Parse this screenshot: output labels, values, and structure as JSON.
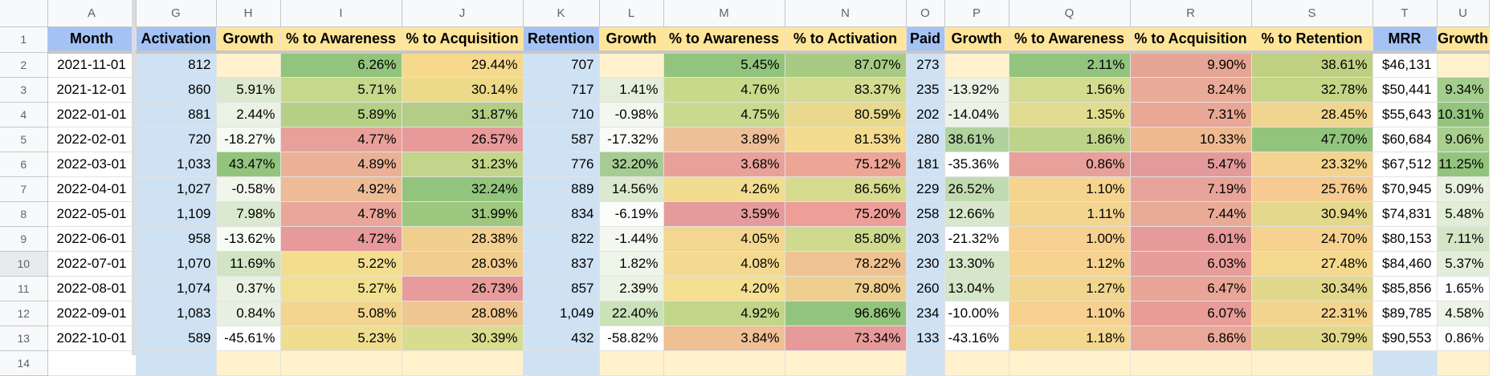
{
  "columns": [
    "A",
    "G",
    "H",
    "I",
    "J",
    "K",
    "L",
    "M",
    "N",
    "O",
    "P",
    "Q",
    "R",
    "S",
    "T",
    "U"
  ],
  "row_numbers": [
    "1",
    "2",
    "3",
    "4",
    "5",
    "6",
    "7",
    "8",
    "9",
    "10",
    "11",
    "12",
    "13",
    "14"
  ],
  "headers": [
    "Month",
    "Activation",
    "Growth",
    "% to Awareness",
    "% to Acquisition",
    "Retention",
    "Growth",
    "% to Awareness",
    "% to Activation",
    "Paid",
    "Growth",
    "% to Awareness",
    "% to Acquisition",
    "% to Retention",
    "MRR",
    "Growth"
  ],
  "header_colors": [
    "#a4c2f4",
    "#a4c2f4",
    "#ffe599",
    "#ffe599",
    "#ffe599",
    "#a4c2f4",
    "#ffe599",
    "#ffe599",
    "#ffe599",
    "#a4c2f4",
    "#ffe599",
    "#ffe599",
    "#ffe599",
    "#ffe599",
    "#a4c2f4",
    "#ffe599"
  ],
  "rows": [
    [
      "2021-11-01",
      "812",
      "",
      "6.26%",
      "29.44%",
      "707",
      "",
      "5.45%",
      "87.07%",
      "273",
      "",
      "2.11%",
      "9.90%",
      "38.61%",
      "$46,131",
      ""
    ],
    [
      "2021-12-01",
      "860",
      "5.91%",
      "5.71%",
      "30.14%",
      "717",
      "1.41%",
      "4.76%",
      "83.37%",
      "235",
      "-13.92%",
      "1.56%",
      "8.24%",
      "32.78%",
      "$50,441",
      "9.34%"
    ],
    [
      "2022-01-01",
      "881",
      "2.44%",
      "5.89%",
      "31.87%",
      "710",
      "-0.98%",
      "4.75%",
      "80.59%",
      "202",
      "-14.04%",
      "1.35%",
      "7.31%",
      "28.45%",
      "$55,643",
      "10.31%"
    ],
    [
      "2022-02-01",
      "720",
      "-18.27%",
      "4.77%",
      "26.57%",
      "587",
      "-17.32%",
      "3.89%",
      "81.53%",
      "280",
      "38.61%",
      "1.86%",
      "10.33%",
      "47.70%",
      "$60,684",
      "9.06%"
    ],
    [
      "2022-03-01",
      "1,033",
      "43.47%",
      "4.89%",
      "31.23%",
      "776",
      "32.20%",
      "3.68%",
      "75.12%",
      "181",
      "-35.36%",
      "0.86%",
      "5.47%",
      "23.32%",
      "$67,512",
      "11.25%"
    ],
    [
      "2022-04-01",
      "1,027",
      "-0.58%",
      "4.92%",
      "32.24%",
      "889",
      "14.56%",
      "4.26%",
      "86.56%",
      "229",
      "26.52%",
      "1.10%",
      "7.19%",
      "25.76%",
      "$70,945",
      "5.09%"
    ],
    [
      "2022-05-01",
      "1,109",
      "7.98%",
      "4.78%",
      "31.99%",
      "834",
      "-6.19%",
      "3.59%",
      "75.20%",
      "258",
      "12.66%",
      "1.11%",
      "7.44%",
      "30.94%",
      "$74,831",
      "5.48%"
    ],
    [
      "2022-06-01",
      "958",
      "-13.62%",
      "4.72%",
      "28.38%",
      "822",
      "-1.44%",
      "4.05%",
      "85.80%",
      "203",
      "-21.32%",
      "1.00%",
      "6.01%",
      "24.70%",
      "$80,153",
      "7.11%"
    ],
    [
      "2022-07-01",
      "1,070",
      "11.69%",
      "5.22%",
      "28.03%",
      "837",
      "1.82%",
      "4.08%",
      "78.22%",
      "230",
      "13.30%",
      "1.12%",
      "6.03%",
      "27.48%",
      "$84,460",
      "5.37%"
    ],
    [
      "2022-08-01",
      "1,074",
      "0.37%",
      "5.27%",
      "26.73%",
      "857",
      "2.39%",
      "4.20%",
      "79.80%",
      "260",
      "13.04%",
      "1.27%",
      "6.47%",
      "30.34%",
      "$85,856",
      "1.65%"
    ],
    [
      "2022-09-01",
      "1,083",
      "0.84%",
      "5.08%",
      "28.08%",
      "1,049",
      "22.40%",
      "4.92%",
      "96.86%",
      "234",
      "-10.00%",
      "1.10%",
      "6.07%",
      "22.31%",
      "$89,785",
      "4.58%"
    ],
    [
      "2022-10-01",
      "589",
      "-45.61%",
      "5.23%",
      "30.39%",
      "432",
      "-58.82%",
      "3.84%",
      "73.34%",
      "133",
      "-43.16%",
      "1.18%",
      "6.86%",
      "30.79%",
      "$90,553",
      "0.86%"
    ],
    [
      "",
      "",
      "",
      "",
      "",
      "",
      "",
      "",
      "",
      "",
      "",
      "",
      "",
      "",
      "",
      ""
    ]
  ],
  "row_colors": [
    [
      "#ffffff",
      "#cfe2f3",
      "#fff2cc",
      "#93c47d",
      "#f6d98c",
      "#cfe2f3",
      "#fff2cc",
      "#93c47d",
      "#a8cb84",
      "#cfe2f3",
      "#fff2cc",
      "#93c47d",
      "#e6a594",
      "#c0d082",
      "#ffffff",
      "#fff2cc"
    ],
    [
      "#ffffff",
      "#cfe2f3",
      "#dbe9cf",
      "#c6d88c",
      "#ecda88",
      "#cfe2f3",
      "#e4eedb",
      "#c8d98c",
      "#d3dc90",
      "#cfe2f3",
      "#ecf3e6",
      "#d3dc90",
      "#e9ab97",
      "#c5d486",
      "#ffffff",
      "#a3cd8c"
    ],
    [
      "#ffffff",
      "#cfe2f3",
      "#eaf2e3",
      "#b5cf85",
      "#b4cd86",
      "#cfe2f3",
      "#f3f7ef",
      "#cad98e",
      "#e8d98c",
      "#cfe2f3",
      "#ecf3e6",
      "#e1dc8f",
      "#e9a796",
      "#f0d58e",
      "#ffffff",
      "#93c47d"
    ],
    [
      "#ffffff",
      "#cfe2f3",
      "#f5fbf1",
      "#e8a09a",
      "#e8999a",
      "#cfe2f3",
      "#f8fbf6",
      "#eec09a",
      "#f3db8f",
      "#cfe2f3",
      "#b0d29f",
      "#bdd389",
      "#eeb991",
      "#93c47d",
      "#ffffff",
      "#a9cf90"
    ],
    [
      "#ffffff",
      "#cfe2f3",
      "#93c47d",
      "#ebb196",
      "#c3d58b",
      "#cfe2f3",
      "#a6cc94",
      "#e8a09a",
      "#eda695",
      "#cfe2f3",
      "#ffffff",
      "#e8a09a",
      "#e39a9a",
      "#f3d38f",
      "#ffffff",
      "#93c47d"
    ],
    [
      "#ffffff",
      "#cfe2f3",
      "#f0f6ec",
      "#edbc97",
      "#93c47d",
      "#cfe2f3",
      "#dbe9d0",
      "#f2dc90",
      "#d6db8f",
      "#cfe2f3",
      "#c1dbb1",
      "#f5d48f",
      "#e8a49a",
      "#f6cb91",
      "#ffffff",
      "#e6f1df"
    ],
    [
      "#ffffff",
      "#cfe2f3",
      "#dae9cf",
      "#eaa69a",
      "#9ec77f",
      "#cfe2f3",
      "#fbfdfa",
      "#e59b9b",
      "#ed9e98",
      "#cfe2f3",
      "#d7e7cb",
      "#f4d58f",
      "#e9aa96",
      "#e4d88c",
      "#ffffff",
      "#e0edd7"
    ],
    [
      "#ffffff",
      "#cfe2f3",
      "#f6fbf3",
      "#e79a9a",
      "#f1cf8f",
      "#cfe2f3",
      "#f3f7ef",
      "#f3d68f",
      "#cfda8f",
      "#cfe2f3",
      "#ffffff",
      "#f7d190",
      "#e69a9a",
      "#f5d28f",
      "#ffffff",
      "#d3e6c7"
    ],
    [
      "#ffffff",
      "#cfe2f3",
      "#d1e4c4",
      "#f3de90",
      "#f1cd90",
      "#cfe2f3",
      "#eef5e9",
      "#f4da90",
      "#efc391",
      "#cfe2f3",
      "#d5e6c9",
      "#f7d390",
      "#e79d99",
      "#f4d98f",
      "#ffffff",
      "#e2eed9"
    ],
    [
      "#ffffff",
      "#cfe2f3",
      "#e9f2e2",
      "#f1e08f",
      "#e79b9a",
      "#cfe2f3",
      "#ebf3e5",
      "#f5df90",
      "#efcf90",
      "#cfe2f3",
      "#d5e6c9",
      "#f0d68e",
      "#e9a596",
      "#e2d88c",
      "#ffffff",
      "#ffffff"
    ],
    [
      "#ffffff",
      "#cfe2f3",
      "#e8f1e1",
      "#f3d58f",
      "#f0c791",
      "#cfe2f3",
      "#cae2b8",
      "#c2d689",
      "#93c47d",
      "#cfe2f3",
      "#ffffff",
      "#f7d190",
      "#e89d99",
      "#f3d48f",
      "#ffffff",
      "#ecf4e6"
    ],
    [
      "#ffffff",
      "#cfe2f3",
      "#ffffff",
      "#efde8f",
      "#d8dc8f",
      "#cfe2f3",
      "#ffffff",
      "#efc094",
      "#e79a9a",
      "#cfe2f3",
      "#ffffff",
      "#f4d890",
      "#e9a898",
      "#e2d88c",
      "#ffffff",
      "#ffffff"
    ],
    [
      "#ffffff",
      "#cfe2f3",
      "#fff2cc",
      "#fff2cc",
      "#fff2cc",
      "#cfe2f3",
      "#fff2cc",
      "#fff2cc",
      "#fff2cc",
      "#cfe2f3",
      "#fff2cc",
      "#fff2cc",
      "#fff2cc",
      "#fff2cc",
      "#cfe2f3",
      "#fff2cc"
    ]
  ]
}
